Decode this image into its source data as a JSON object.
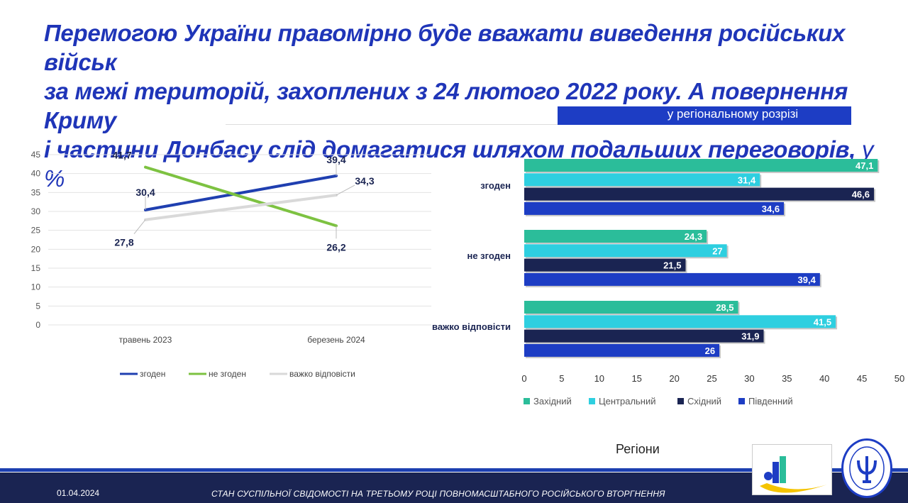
{
  "title": {
    "line1": "Перемогою України правомірно буде вважати виведення російських військ",
    "line2": "за межі територій, захоплених з 24 лютого 2022 року. А повернення Криму",
    "line3": "і частини Донбасу слід домагатися шляхом подальших переговорів,",
    "unit": " у %"
  },
  "subtitle": "у регіональному розрізі",
  "regions_label": "Регіони",
  "footer": {
    "date": "01.04.2024",
    "text": "СТАН СУСПІЛЬНОЇ СВІДОМОСТІ НА ТРЕТЬОМУ РОЦІ ПОВНОМАСШТАБНОГО РОСІЙСЬКОГО ВТОРГНЕННЯ"
  },
  "logos": {
    "association": "Асоціація Політичних Психологів України",
    "institute_seal": "Інститут соціальної та політичної психології"
  },
  "colors": {
    "title": "#1f35b8",
    "zgoden": "#1f3fb0",
    "ne_zgoden": "#7dc241",
    "vazhko": "#d9d9d9",
    "western": "#2bbd9a",
    "central": "#2ecfe0",
    "eastern": "#1a2452",
    "southern": "#1d3dc4"
  },
  "chart_data": [
    {
      "type": "line",
      "categories": [
        "травень 2023",
        "березень 2024"
      ],
      "ylim": [
        0,
        45
      ],
      "yticks": [
        0,
        5,
        10,
        15,
        20,
        25,
        30,
        35,
        40,
        45
      ],
      "grid": true,
      "legend": "bottom",
      "series": [
        {
          "name": "згоден",
          "values": [
            30.4,
            39.4
          ],
          "labels": [
            "30,4",
            "39,4"
          ],
          "color": "#1f3fb0"
        },
        {
          "name": "не згоден",
          "values": [
            41.7,
            26.2
          ],
          "labels": [
            "41,7",
            "26,2"
          ],
          "color": "#7dc241"
        },
        {
          "name": "важко відповісти",
          "values": [
            27.8,
            34.3
          ],
          "labels": [
            "27,8",
            "34,3"
          ],
          "color": "#d9d9d9"
        }
      ]
    },
    {
      "type": "bar",
      "orientation": "horizontal",
      "categories": [
        "згоден",
        "не згоден",
        "важко відповісти"
      ],
      "xlim": [
        0,
        50
      ],
      "xticks": [
        0,
        5,
        10,
        15,
        20,
        25,
        30,
        35,
        40,
        45,
        50
      ],
      "xlabel": "Регіони",
      "legend": "bottom",
      "series": [
        {
          "name": "Західний",
          "values": [
            47.1,
            24.3,
            28.5
          ],
          "labels": [
            "47,1",
            "24,3",
            "28,5"
          ],
          "color": "#2bbd9a"
        },
        {
          "name": "Центральний",
          "values": [
            31.4,
            27,
            41.5
          ],
          "labels": [
            "31,4",
            "27",
            "41,5"
          ],
          "color": "#2ecfe0"
        },
        {
          "name": "Східний",
          "values": [
            46.6,
            21.5,
            31.9
          ],
          "labels": [
            "46,6",
            "21,5",
            "31,9"
          ],
          "color": "#1a2452"
        },
        {
          "name": "Південний",
          "values": [
            34.6,
            39.4,
            26
          ],
          "labels": [
            "34,6",
            "39,4",
            "26"
          ],
          "color": "#1d3dc4"
        }
      ]
    }
  ]
}
